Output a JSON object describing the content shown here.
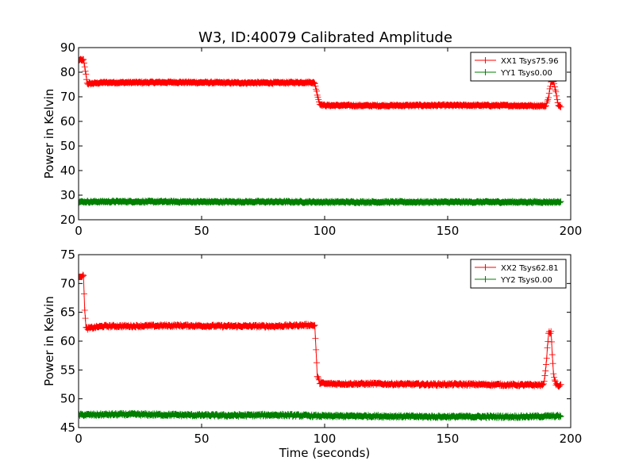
{
  "figure": {
    "title": "W3, ID:40079 Calibrated Amplitude"
  },
  "colors": {
    "xx": "#ff0000",
    "yy": "#007f00",
    "axis": "#000000"
  },
  "chart_data": [
    {
      "type": "line",
      "xlabel": "",
      "ylabel": "Power in Kelvin",
      "xlim": [
        0,
        200
      ],
      "ylim": [
        20,
        90
      ],
      "xticks": [
        "0",
        "50",
        "100",
        "150",
        "200"
      ],
      "yticks": [
        "20",
        "30",
        "40",
        "50",
        "60",
        "70",
        "80",
        "90"
      ],
      "legend_position": "top-right",
      "grid": false,
      "series": [
        {
          "name": "XX1 Tsys75.96",
          "color": "#ff0000",
          "noise": 0.35,
          "x": [
            0,
            1,
            2,
            3,
            3.5,
            4,
            10,
            20,
            40,
            60,
            80,
            95,
            96,
            97,
            98,
            100,
            120,
            140,
            160,
            180,
            190,
            191,
            192,
            193,
            194,
            195,
            196
          ],
          "y": [
            85,
            85,
            85,
            79,
            75.5,
            75.3,
            75.8,
            75.8,
            75.9,
            75.7,
            75.7,
            75.9,
            75.5,
            71,
            67,
            66.5,
            66.4,
            66.5,
            66.5,
            66.4,
            66.3,
            70,
            76,
            76,
            72,
            66.5,
            66.2
          ]
        },
        {
          "name": "YY1 Tsys0.00",
          "color": "#007f00",
          "noise": 0.35,
          "x": [
            0,
            20,
            40,
            60,
            80,
            100,
            120,
            140,
            160,
            180,
            196
          ],
          "y": [
            27.3,
            27.4,
            27.3,
            27.3,
            27.3,
            27.2,
            27.2,
            27.2,
            27.2,
            27.2,
            27.2
          ]
        }
      ]
    },
    {
      "type": "line",
      "xlabel": "Time (seconds)",
      "ylabel": "Power in Kelvin",
      "xlim": [
        0,
        200
      ],
      "ylim": [
        45,
        75
      ],
      "xticks": [
        "0",
        "50",
        "100",
        "150",
        "200"
      ],
      "yticks": [
        "45",
        "50",
        "55",
        "60",
        "65",
        "70",
        "75"
      ],
      "legend_position": "top-right",
      "grid": false,
      "series": [
        {
          "name": "XX2 Tsys62.81",
          "color": "#ff0000",
          "noise": 0.2,
          "x": [
            0,
            1,
            2,
            2.5,
            3,
            3.5,
            10,
            20,
            40,
            60,
            80,
            94,
            96,
            97,
            98,
            100,
            120,
            140,
            160,
            180,
            189,
            190,
            191,
            192,
            193,
            194,
            195,
            196
          ],
          "y": [
            71.3,
            71.3,
            71.3,
            65.5,
            62.3,
            62.2,
            62.6,
            62.6,
            62.7,
            62.6,
            62.6,
            62.8,
            62.7,
            54,
            52.8,
            52.6,
            52.6,
            52.5,
            52.5,
            52.4,
            52.4,
            55.8,
            61.5,
            61.5,
            54.2,
            52.5,
            52.3,
            52.3
          ]
        },
        {
          "name": "YY2 Tsys0.00",
          "color": "#007f00",
          "noise": 0.2,
          "x": [
            0,
            20,
            40,
            60,
            80,
            100,
            120,
            140,
            160,
            180,
            196
          ],
          "y": [
            47.2,
            47.3,
            47.2,
            47.1,
            47.2,
            47.0,
            47.0,
            46.9,
            46.9,
            46.9,
            47.0
          ]
        }
      ]
    }
  ]
}
